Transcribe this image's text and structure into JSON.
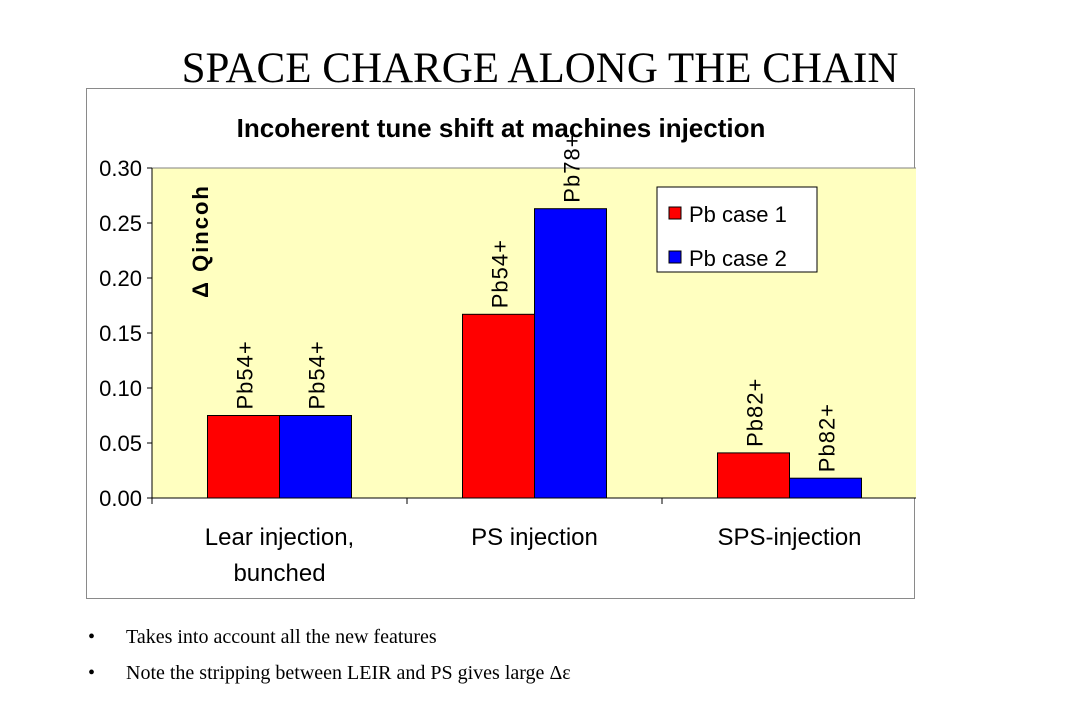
{
  "slide": {
    "title": "SPACE CHARGE ALONG THE CHAIN",
    "bullets": [
      "Takes into account all the new features",
      "Note the stripping between LEIR and PS gives large Δε"
    ],
    "bullet_glyph": "•"
  },
  "chart_data": {
    "type": "bar",
    "title": "Incoherent tune shift at machines injection",
    "ylabel": "Δ Qincoh",
    "xlabel": "",
    "ylim": [
      0,
      0.3
    ],
    "yticks": [
      "0.00",
      "0.05",
      "0.10",
      "0.15",
      "0.20",
      "0.25",
      "0.30"
    ],
    "categories": [
      [
        "Lear injection,",
        "bunched"
      ],
      [
        "PS injection"
      ],
      [
        "SPS-injection"
      ]
    ],
    "series": [
      {
        "name": "Pb case 1",
        "color": "#ff0000",
        "values": [
          0.075,
          0.167,
          0.041
        ],
        "labels": [
          "Pb54+",
          "Pb54+",
          "Pb82+"
        ]
      },
      {
        "name": "Pb case 2",
        "color": "#0000ff",
        "values": [
          0.075,
          0.263,
          0.018
        ],
        "labels": [
          "Pb54+",
          "Pb78+",
          "Pb82+"
        ]
      }
    ],
    "plot_background": "#ffffc0",
    "grid": false,
    "legend_position": "top-right"
  }
}
